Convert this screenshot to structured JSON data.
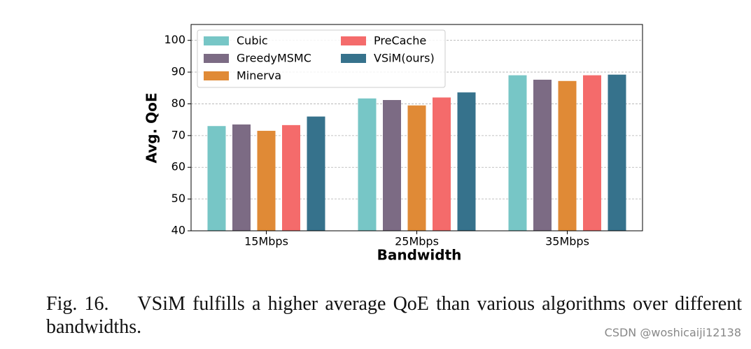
{
  "chart_data": {
    "type": "bar",
    "xlabel": "Bandwidth",
    "ylabel": "Avg. QoE",
    "categories": [
      "15Mbps",
      "25Mbps",
      "35Mbps"
    ],
    "series": [
      {
        "name": "Cubic",
        "color": "#77c6c6",
        "values": [
          73,
          81.7,
          89
        ]
      },
      {
        "name": "GreedyMSMC",
        "color": "#7c6b84",
        "values": [
          73.5,
          81.2,
          87.6
        ]
      },
      {
        "name": "Minerva",
        "color": "#e08a36",
        "values": [
          71.5,
          79.5,
          87.2
        ]
      },
      {
        "name": "PreCache",
        "color": "#f46b6b",
        "values": [
          73.3,
          82,
          89
        ]
      },
      {
        "name": "VSiM(ours)",
        "color": "#36728c",
        "values": [
          76,
          83.6,
          89.2
        ]
      }
    ],
    "ylim": [
      40,
      105
    ],
    "yticks": [
      40,
      50,
      60,
      70,
      80,
      90,
      100
    ],
    "grid": true,
    "legend": "upper left"
  },
  "caption": {
    "label": "Fig. 16.",
    "text": "VSiM fulfills a higher average QoE than various algorithms over different bandwidths."
  },
  "watermark": "CSDN @woshicaiji12138"
}
